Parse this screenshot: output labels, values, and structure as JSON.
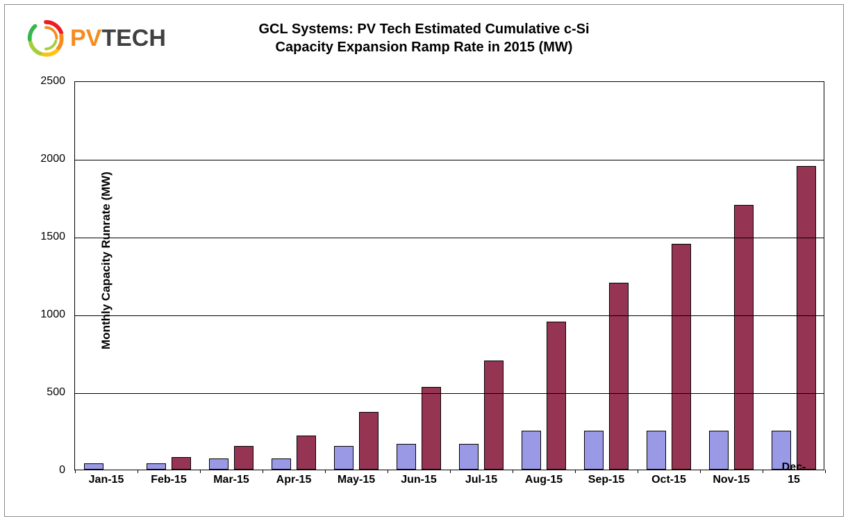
{
  "chart": {
    "title_line1": "GCL Systems: PV Tech Estimated Cumulative c-Si",
    "title_line2": "Capacity Expansion Ramp Rate in 2015 (MW)",
    "title_fontsize": 20,
    "title_color": "#000000",
    "y_axis_label": "Monthly Capacity Runrate (MW)",
    "y_axis_fontsize": 17,
    "border_color": "#888888",
    "plot_border_color": "#000000",
    "background_color": "#ffffff",
    "grid_color": "#000000",
    "ylim": [
      0,
      2500
    ],
    "ytick_step": 500,
    "yticks": [
      0,
      500,
      1000,
      1500,
      2000,
      2500
    ],
    "categories": [
      "Jan-15",
      "Feb-15",
      "Mar-15",
      "Apr-15",
      "May-15",
      "Jun-15",
      "Jul-15",
      "Aug-15",
      "Sep-15",
      "Oct-15",
      "Nov-15",
      "Dec-15"
    ],
    "series": [
      {
        "name": "series-a",
        "fill": "#9999e6",
        "border": "#000000",
        "values": [
          40,
          40,
          70,
          70,
          150,
          165,
          165,
          250,
          250,
          250,
          250,
          250
        ]
      },
      {
        "name": "series-b",
        "fill": "#953553",
        "border": "#000000",
        "values": [
          0,
          80,
          150,
          220,
          370,
          530,
          700,
          950,
          1200,
          1450,
          1700,
          1950
        ]
      }
    ],
    "bar_gap_ratio": 0.12,
    "group_padding_ratio": 0.14,
    "logo": {
      "pv": "PV",
      "tech": "TECH",
      "pv_color": "#f68b1e",
      "tech_color": "#404040",
      "arc1": "#ed1c24",
      "arc2": "#f68b1e",
      "arc3": "#ffc20e",
      "arc4": "#a6ce39",
      "arc5": "#39b54a"
    }
  }
}
